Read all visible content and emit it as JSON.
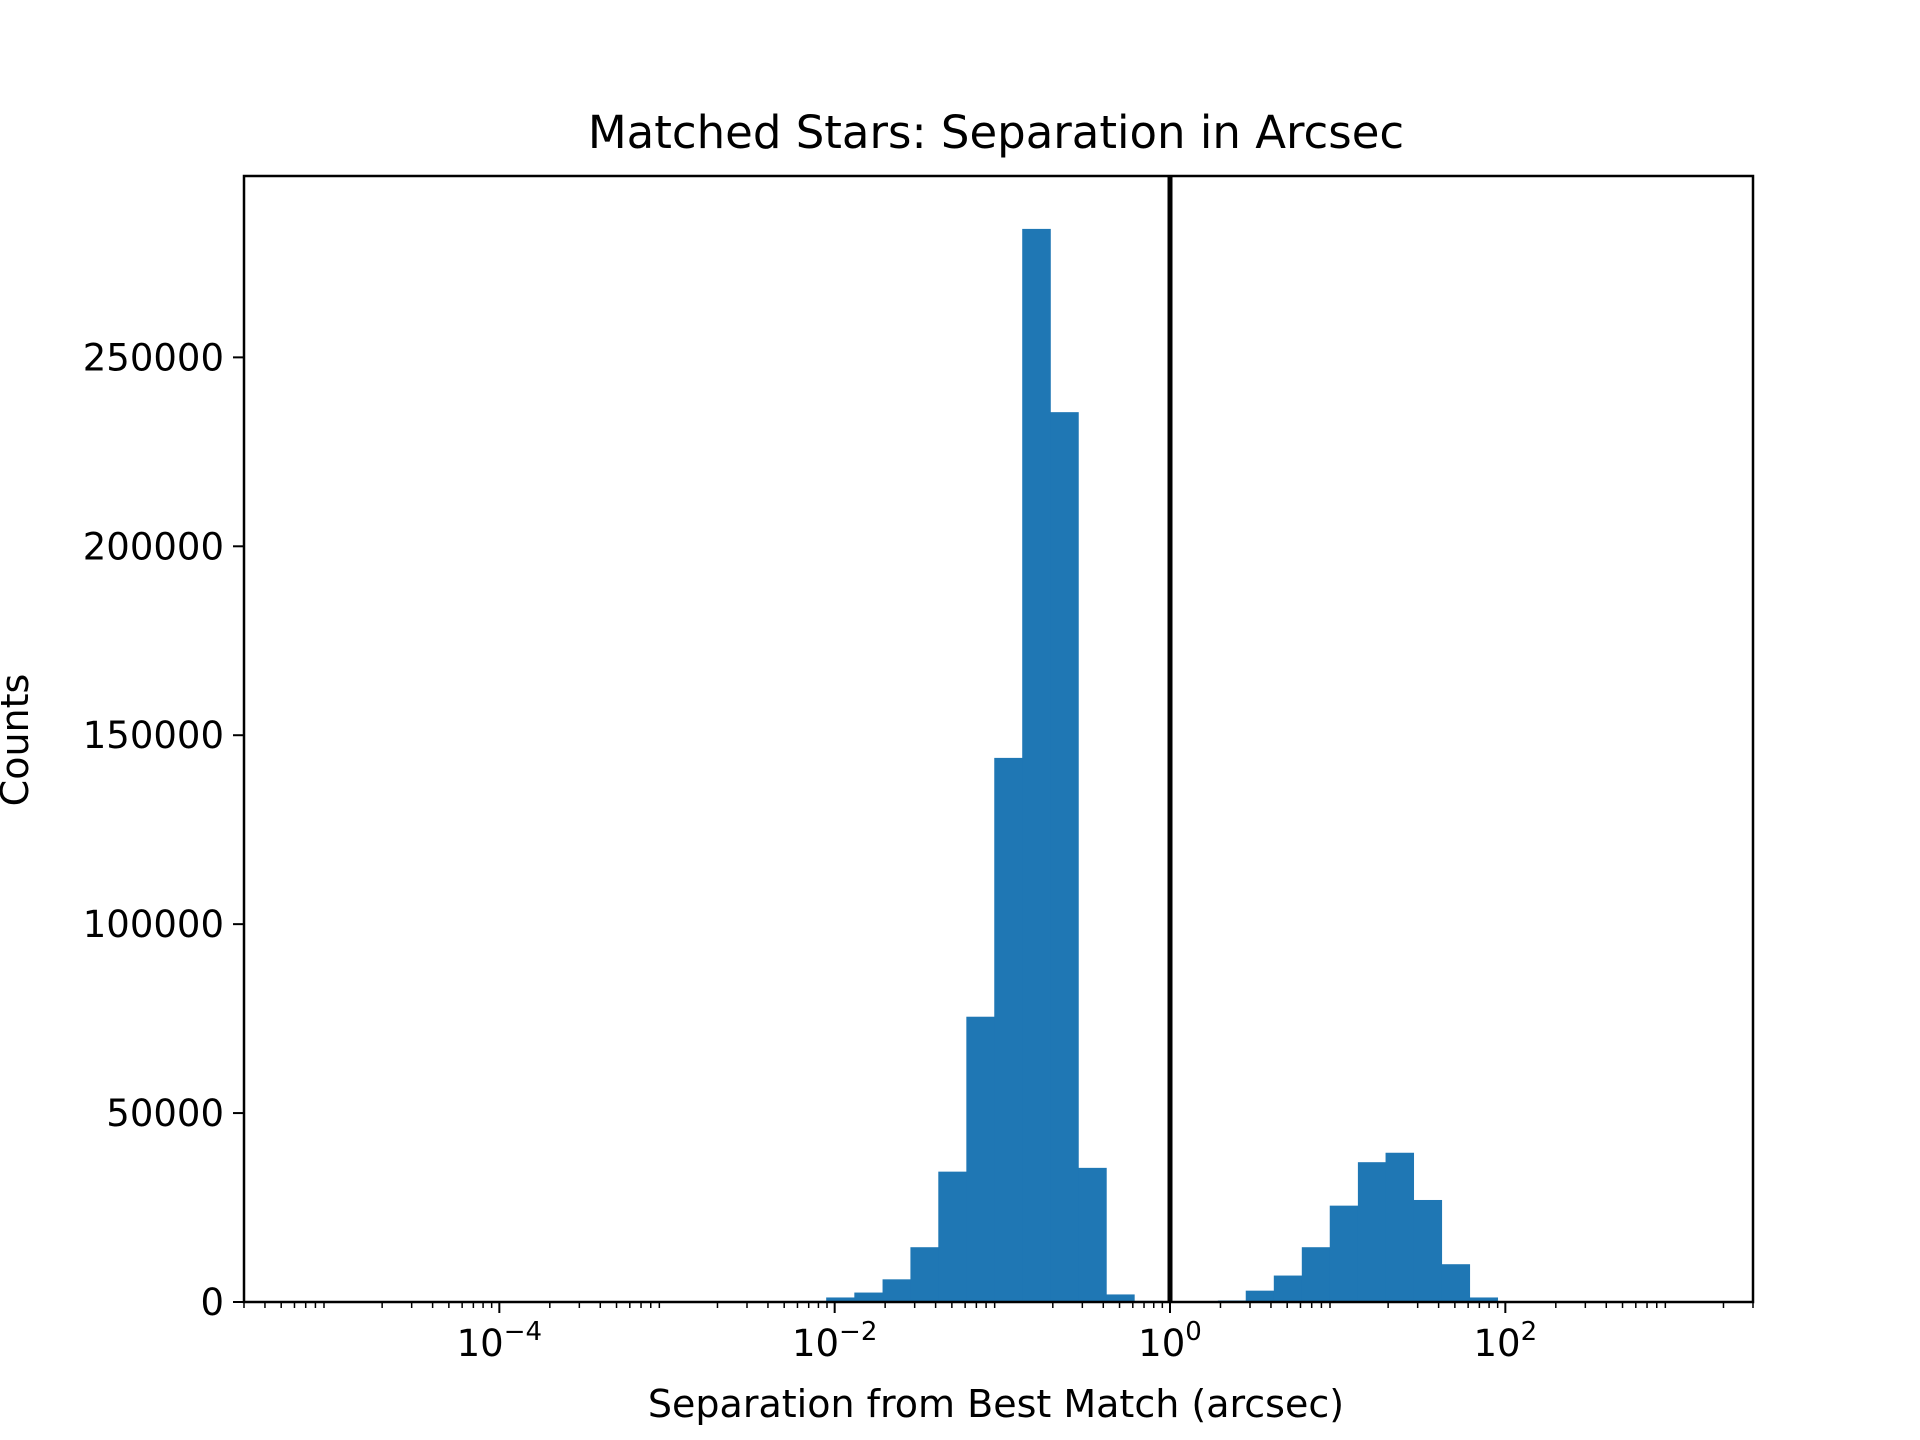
{
  "chart_data": {
    "type": "bar",
    "title": "Matched Stars: Separation in Arcsec",
    "xlabel": "Separation from Best Match (arcsec)",
    "ylabel": "Counts",
    "x_scale": "log",
    "xlim": [
      3e-06,
      3000
    ],
    "ylim": [
      0,
      298000
    ],
    "x_ticks": [
      {
        "value": 0.0001,
        "base": "10",
        "exp": "−4"
      },
      {
        "value": 0.01,
        "base": "10",
        "exp": "−2"
      },
      {
        "value": 1,
        "base": "10",
        "exp": "0"
      },
      {
        "value": 100,
        "base": "10",
        "exp": "2"
      }
    ],
    "y_ticks": [
      {
        "value": 0,
        "label": "0"
      },
      {
        "value": 50000,
        "label": "50000"
      },
      {
        "value": 100000,
        "label": "100000"
      },
      {
        "value": 150000,
        "label": "150000"
      },
      {
        "value": 200000,
        "label": "200000"
      },
      {
        "value": 250000,
        "label": "250000"
      }
    ],
    "bar_color": "#1f77b4",
    "vline": {
      "x": 1,
      "color": "#000000"
    },
    "grid": false,
    "series": [
      {
        "bins": [
          {
            "x0": 0.0061,
            "x1": 0.0089,
            "count": 300
          },
          {
            "x0": 0.0089,
            "x1": 0.0131,
            "count": 1200
          },
          {
            "x0": 0.0131,
            "x1": 0.0193,
            "count": 2500
          },
          {
            "x0": 0.0193,
            "x1": 0.0283,
            "count": 6000
          },
          {
            "x0": 0.0283,
            "x1": 0.0415,
            "count": 14500
          },
          {
            "x0": 0.0415,
            "x1": 0.061,
            "count": 34500
          },
          {
            "x0": 0.061,
            "x1": 0.0895,
            "count": 75500
          },
          {
            "x0": 0.0895,
            "x1": 0.1314,
            "count": 144000
          },
          {
            "x0": 0.1314,
            "x1": 0.1929,
            "count": 284000
          },
          {
            "x0": 0.1929,
            "x1": 0.2832,
            "count": 235500
          },
          {
            "x0": 0.2832,
            "x1": 0.4158,
            "count": 35500
          },
          {
            "x0": 0.4158,
            "x1": 0.6105,
            "count": 2000
          },
          {
            "x0": 0.6105,
            "x1": 0.8963,
            "count": 300
          },
          {
            "x0": 1.93,
            "x1": 2.83,
            "count": 400
          },
          {
            "x0": 2.83,
            "x1": 4.16,
            "count": 3000
          },
          {
            "x0": 4.16,
            "x1": 6.11,
            "count": 7000
          },
          {
            "x0": 6.11,
            "x1": 8.97,
            "count": 14500
          },
          {
            "x0": 8.97,
            "x1": 13.2,
            "count": 25500
          },
          {
            "x0": 13.2,
            "x1": 19.3,
            "count": 37000
          },
          {
            "x0": 19.3,
            "x1": 28.3,
            "count": 39500
          },
          {
            "x0": 28.3,
            "x1": 41.6,
            "count": 27000
          },
          {
            "x0": 41.6,
            "x1": 61.1,
            "count": 10000
          },
          {
            "x0": 61.1,
            "x1": 89.7,
            "count": 1200
          }
        ]
      }
    ]
  }
}
